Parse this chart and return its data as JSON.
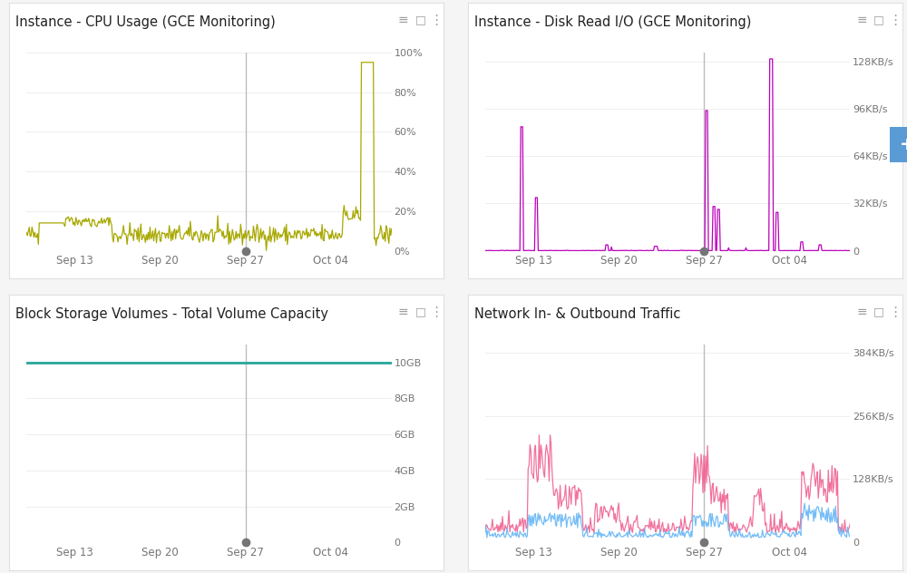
{
  "background_color": "#f5f5f5",
  "panel_bg": "#ffffff",
  "border_color": "#e0e0e0",
  "title_color": "#212121",
  "axis_label_color": "#757575",
  "vline_color": "#bdbdbd",
  "vline_dot_color": "#757575",
  "icon_color": "#9e9e9e",
  "panels": [
    {
      "title": "Instance - CPU Usage (GCE Monitoring)",
      "ytick_vals": [
        0,
        0.2,
        0.4,
        0.6,
        0.8,
        1.0
      ],
      "ytick_labels": [
        "0%",
        "20%",
        "40%",
        "60%",
        "80%",
        "100%"
      ],
      "line_color": "#a8a800",
      "type": "cpu"
    },
    {
      "title": "Instance - Disk Read I/O (GCE Monitoring)",
      "ytick_vals": [
        0,
        0.25,
        0.5,
        0.75,
        1.0
      ],
      "ytick_labels": [
        "0",
        "32KB/s",
        "64KB/s",
        "96KB/s",
        "128KB/s"
      ],
      "line_color": "#bb00bb",
      "type": "disk"
    },
    {
      "title": "Block Storage Volumes - Total Volume Capacity",
      "ytick_vals": [
        0,
        2,
        4,
        6,
        8,
        10
      ],
      "ytick_labels": [
        "0",
        "2GB",
        "4GB",
        "6GB",
        "8GB",
        "10GB"
      ],
      "line_color": "#26a69a",
      "type": "storage"
    },
    {
      "title": "Network In- & Outbound Traffic",
      "ytick_vals": [
        0,
        128,
        256,
        384
      ],
      "ytick_labels": [
        "0",
        "128KB/s",
        "256KB/s",
        "384KB/s"
      ],
      "line_color_in": "#f06292",
      "line_color_out": "#64b5f6",
      "type": "network"
    }
  ],
  "xtick_labels": [
    "Sep 13",
    "Sep 20",
    "Sep 27",
    "Oct 04"
  ],
  "fab_color": "#5b9bd5",
  "total_days": 30,
  "sep13_day": 4,
  "sep20_day": 11,
  "sep27_day": 18,
  "oct04_day": 25,
  "vline_day": 18
}
